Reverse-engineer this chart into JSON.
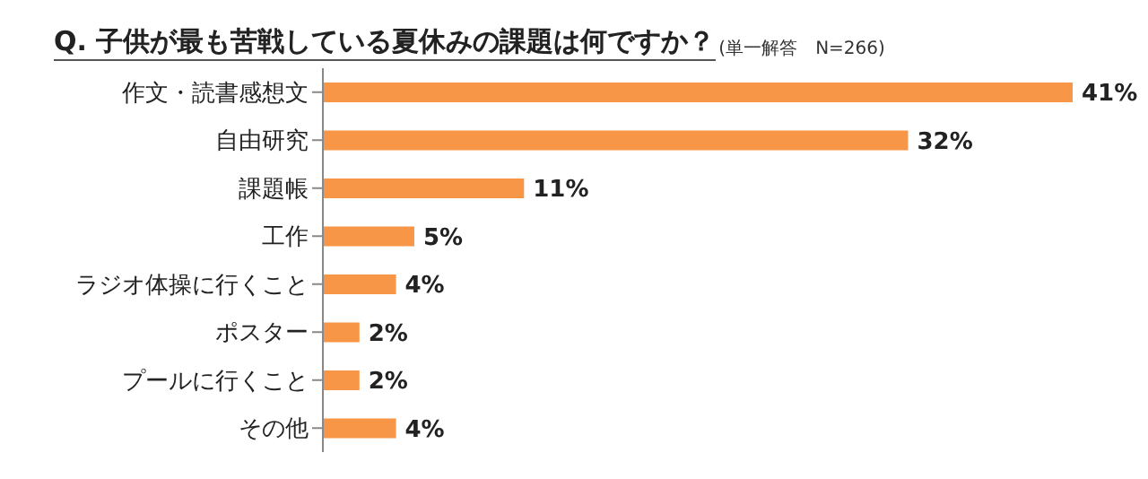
{
  "chart_data": {
    "type": "bar",
    "orientation": "horizontal",
    "title": "Q.  子供が最も苦戦している夏休みの課題は何ですか？",
    "subtitle": "(単一解答　N=266)",
    "categories": [
      "作文・読書感想文",
      "自由研究",
      "課題帳",
      "工作",
      "ラジオ体操に行くこと",
      "ポスター",
      "プールに行くこと",
      "その他"
    ],
    "values": [
      41,
      32,
      11,
      5,
      4,
      2,
      2,
      4
    ],
    "value_labels": [
      "41%",
      "32%",
      "11%",
      "5%",
      "4%",
      "2%",
      "2%",
      "4%"
    ],
    "color": "#f79646",
    "tick_labels": "y"
  }
}
